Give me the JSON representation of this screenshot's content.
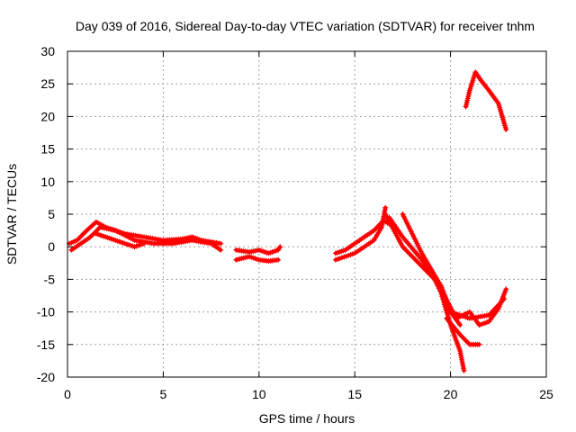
{
  "chart_data": {
    "type": "scatter",
    "title": "Day 039 of 2016, Sidereal Day-to-day VTEC variation (SDTVAR) for receiver tnhm",
    "xlabel": "GPS time / hours",
    "ylabel": "SDTVAR / TECUs",
    "xlim": [
      0,
      25
    ],
    "ylim": [
      -20,
      30
    ],
    "xticks": [
      0,
      5,
      10,
      15,
      20,
      25
    ],
    "yticks": [
      -20,
      -15,
      -10,
      -5,
      0,
      5,
      10,
      15,
      20,
      25,
      30
    ],
    "grid": true,
    "legend": "none",
    "marker": "plus",
    "color": "#ff0000",
    "series": [
      {
        "x": [
          0.1,
          0.5,
          1.0,
          1.5,
          2.0,
          3.0,
          4.0,
          5.0,
          6.0,
          6.5,
          7.0,
          8.0
        ],
        "y": [
          0.5,
          1.0,
          2.5,
          3.8,
          3.0,
          2.0,
          1.5,
          1.0,
          1.2,
          1.5,
          1.0,
          0.5
        ]
      },
      {
        "x": [
          0.2,
          0.7,
          1.2,
          1.7,
          2.5,
          3.5,
          4.5,
          5.5,
          6.5,
          7.5,
          8.0
        ],
        "y": [
          -0.5,
          0.5,
          1.5,
          3.0,
          2.5,
          1.0,
          0.5,
          0.5,
          1.0,
          0.5,
          -0.5
        ]
      },
      {
        "x": [
          1.5,
          2.0,
          2.5,
          3.0,
          3.5,
          4.0
        ],
        "y": [
          2.0,
          1.5,
          1.0,
          0.5,
          0.0,
          0.5
        ]
      },
      {
        "x": [
          8.8,
          9.5,
          10.0,
          10.5,
          11.0,
          11.1
        ],
        "y": [
          -0.5,
          -0.8,
          -0.5,
          -1.0,
          -0.5,
          0.0
        ]
      },
      {
        "x": [
          8.8,
          9.5,
          10.0,
          10.5,
          11.0
        ],
        "y": [
          -2.0,
          -1.5,
          -2.0,
          -2.2,
          -2.0
        ]
      },
      {
        "x": [
          14.0,
          14.5,
          15.0,
          15.5,
          16.0,
          16.5,
          16.8
        ],
        "y": [
          -1.0,
          -0.5,
          0.5,
          1.5,
          2.5,
          4.0,
          3.5
        ]
      },
      {
        "x": [
          14.0,
          15.0,
          16.0,
          16.4,
          16.6
        ],
        "y": [
          -2.0,
          -1.0,
          1.0,
          3.0,
          6.0
        ]
      },
      {
        "x": [
          16.6,
          17.5,
          18.5,
          19.5,
          20.0,
          20.5
        ],
        "y": [
          5.0,
          0.0,
          -3.0,
          -6.0,
          -10.0,
          -12.0
        ]
      },
      {
        "x": [
          16.8,
          17.5,
          18.5,
          19.0,
          19.5,
          20.0,
          20.5,
          20.7
        ],
        "y": [
          4.5,
          1.5,
          -2.0,
          -4.0,
          -7.0,
          -12.0,
          -16.0,
          -19.0
        ]
      },
      {
        "x": [
          17.5,
          18.5,
          19.5,
          20.0,
          21.0,
          22.0,
          22.8
        ],
        "y": [
          5.0,
          -1.0,
          -6.0,
          -10.0,
          -11.0,
          -10.5,
          -8.0
        ]
      },
      {
        "x": [
          19.5,
          20.3,
          21.0,
          21.5,
          22.0,
          22.5,
          22.9
        ],
        "y": [
          -6.5,
          -11.0,
          -10.0,
          -12.0,
          -11.5,
          -9.5,
          -6.5
        ]
      },
      {
        "x": [
          19.8,
          20.5,
          21.0,
          21.5
        ],
        "y": [
          -11.0,
          -13.5,
          -15.0,
          -15.0
        ]
      },
      {
        "x": [
          20.8,
          21.0,
          21.3,
          21.6,
          22.0,
          22.5,
          22.9
        ],
        "y": [
          21.5,
          24.0,
          26.8,
          25.5,
          24.0,
          22.0,
          18.0
        ]
      }
    ]
  }
}
